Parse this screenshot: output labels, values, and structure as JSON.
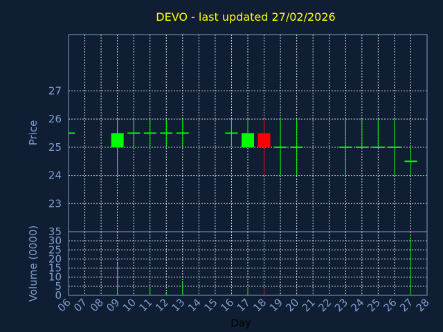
{
  "chart_data": {
    "type": "candlestick",
    "title": "DEVO - last updated 27/02/2026",
    "xlabel": "Day",
    "price_ylabel": "Price",
    "volume_ylabel": "Volume (0000)",
    "x_ticks": [
      "06",
      "07",
      "08",
      "09",
      "10",
      "11",
      "12",
      "13",
      "14",
      "15",
      "16",
      "17",
      "18",
      "19",
      "20",
      "21",
      "22",
      "23",
      "24",
      "25",
      "26",
      "27",
      "28"
    ],
    "price_ylim": [
      22,
      29
    ],
    "price_yticks": [
      23,
      24,
      25,
      26,
      27
    ],
    "volume_ylim": [
      0,
      35
    ],
    "volume_yticks": [
      0,
      5,
      10,
      15,
      20,
      25,
      30,
      35
    ],
    "up_color": "#00ff00",
    "down_color": "#ff0000",
    "candles": [
      {
        "day": "06",
        "open": 25.5,
        "high": 25.5,
        "low": 25.5,
        "close": 25.5,
        "volume": 0
      },
      {
        "day": "09",
        "open": 25.0,
        "high": 26.0,
        "low": 24.0,
        "close": 25.5,
        "volume": 17.5
      },
      {
        "day": "10",
        "open": 25.5,
        "high": 26.0,
        "low": 25.0,
        "close": 25.5,
        "volume": 0.5
      },
      {
        "day": "11",
        "open": 25.5,
        "high": 26.0,
        "low": 25.0,
        "close": 25.5,
        "volume": 4.5
      },
      {
        "day": "12",
        "open": 25.5,
        "high": 26.0,
        "low": 25.0,
        "close": 25.5,
        "volume": 2
      },
      {
        "day": "13",
        "open": 25.5,
        "high": 26.0,
        "low": 25.0,
        "close": 25.5,
        "volume": 8
      },
      {
        "day": "16",
        "open": 25.5,
        "high": 26.0,
        "low": 25.0,
        "close": 25.5,
        "volume": 0.5
      },
      {
        "day": "17",
        "open": 25.0,
        "high": 26.0,
        "low": 25.0,
        "close": 25.5,
        "volume": 4.5
      },
      {
        "day": "18",
        "open": 25.5,
        "high": 26.0,
        "low": 24.0,
        "close": 25.0,
        "volume": 3
      },
      {
        "day": "19",
        "open": 25.0,
        "high": 26.0,
        "low": 24.0,
        "close": 25.0,
        "volume": 0.5
      },
      {
        "day": "20",
        "open": 25.0,
        "high": 26.0,
        "low": 24.0,
        "close": 25.0,
        "volume": 0.5
      },
      {
        "day": "23",
        "open": 25.0,
        "high": 26.0,
        "low": 24.0,
        "close": 25.0,
        "volume": 0.5
      },
      {
        "day": "24",
        "open": 25.0,
        "high": 26.0,
        "low": 25.0,
        "close": 25.0,
        "volume": 0.5
      },
      {
        "day": "25",
        "open": 25.0,
        "high": 26.0,
        "low": 25.0,
        "close": 25.0,
        "volume": 0.5
      },
      {
        "day": "26",
        "open": 25.0,
        "high": 26.0,
        "low": 24.0,
        "close": 25.0,
        "volume": 0.5
      },
      {
        "day": "27",
        "open": 24.5,
        "high": 25.0,
        "low": 24.0,
        "close": 24.5,
        "volume": 32
      }
    ]
  }
}
